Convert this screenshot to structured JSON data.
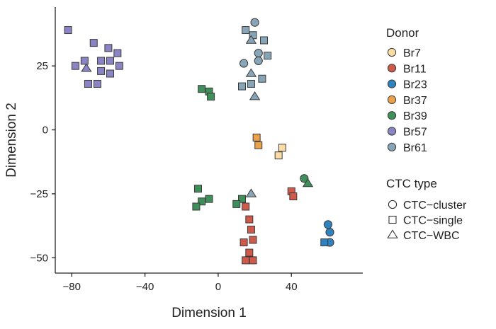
{
  "chart_data": {
    "type": "scatter",
    "title": "",
    "xlabel": "Dimension 1",
    "ylabel": "Dimension 2",
    "xlim": [
      -89,
      79
    ],
    "ylim": [
      -56,
      48
    ],
    "xticks": [
      -80,
      -40,
      0,
      40
    ],
    "yticks": [
      -50,
      -25,
      0,
      25
    ],
    "x_tick_labels": [
      "−80",
      "−40",
      "0",
      "40"
    ],
    "y_tick_labels": [
      "−50",
      "−25",
      "0",
      "25"
    ],
    "grid": false,
    "legend_placement": "right",
    "donor_legend": {
      "title": "Donor",
      "entries": [
        {
          "label": "Br7",
          "color": "#fbdca4"
        },
        {
          "label": "Br11",
          "color": "#cf5a4c"
        },
        {
          "label": "Br23",
          "color": "#2f82c0"
        },
        {
          "label": "Br37",
          "color": "#eba04a"
        },
        {
          "label": "Br39",
          "color": "#3f8f5b"
        },
        {
          "label": "Br57",
          "color": "#8b84c4"
        },
        {
          "label": "Br61",
          "color": "#87a5b7"
        }
      ]
    },
    "type_legend": {
      "title": "CTC type",
      "entries": [
        {
          "label": "CTC−cluster",
          "shape": "circle"
        },
        {
          "label": "CTC−single",
          "shape": "square"
        },
        {
          "label": "CTC−WBC",
          "shape": "triangle"
        }
      ]
    },
    "points": [
      {
        "x": -82,
        "y": 39,
        "donor": "Br57",
        "shape": "square"
      },
      {
        "x": -68,
        "y": 34,
        "donor": "Br57",
        "shape": "square"
      },
      {
        "x": -60,
        "y": 32,
        "donor": "Br57",
        "shape": "square"
      },
      {
        "x": -55,
        "y": 30,
        "donor": "Br57",
        "shape": "square"
      },
      {
        "x": -73,
        "y": 27,
        "donor": "Br57",
        "shape": "square"
      },
      {
        "x": -64,
        "y": 27,
        "donor": "Br57",
        "shape": "square"
      },
      {
        "x": -59,
        "y": 27,
        "donor": "Br57",
        "shape": "square"
      },
      {
        "x": -78,
        "y": 25,
        "donor": "Br57",
        "shape": "square"
      },
      {
        "x": -54,
        "y": 25,
        "donor": "Br57",
        "shape": "square"
      },
      {
        "x": -72,
        "y": 24,
        "donor": "Br57",
        "shape": "triangle"
      },
      {
        "x": -64,
        "y": 23,
        "donor": "Br57",
        "shape": "square"
      },
      {
        "x": -59,
        "y": 22,
        "donor": "Br57",
        "shape": "square"
      },
      {
        "x": -71,
        "y": 18,
        "donor": "Br57",
        "shape": "square"
      },
      {
        "x": -66,
        "y": 18,
        "donor": "Br57",
        "shape": "square"
      },
      {
        "x": 20,
        "y": 42,
        "donor": "Br61",
        "shape": "circle"
      },
      {
        "x": 15,
        "y": 39,
        "donor": "Br61",
        "shape": "square"
      },
      {
        "x": 19,
        "y": 37,
        "donor": "Br61",
        "shape": "square"
      },
      {
        "x": 18,
        "y": 35,
        "donor": "Br61",
        "shape": "triangle"
      },
      {
        "x": 25,
        "y": 35,
        "donor": "Br61",
        "shape": "square"
      },
      {
        "x": 22,
        "y": 30,
        "donor": "Br61",
        "shape": "circle"
      },
      {
        "x": 27,
        "y": 29,
        "donor": "Br61",
        "shape": "square"
      },
      {
        "x": 22,
        "y": 27,
        "donor": "Br61",
        "shape": "circle"
      },
      {
        "x": 14,
        "y": 26,
        "donor": "Br61",
        "shape": "circle"
      },
      {
        "x": 18,
        "y": 22,
        "donor": "Br61",
        "shape": "triangle"
      },
      {
        "x": 24,
        "y": 20,
        "donor": "Br61",
        "shape": "square"
      },
      {
        "x": 18,
        "y": 18,
        "donor": "Br61",
        "shape": "square"
      },
      {
        "x": 13,
        "y": 17,
        "donor": "Br61",
        "shape": "square"
      },
      {
        "x": 20,
        "y": 13,
        "donor": "Br61",
        "shape": "triangle"
      },
      {
        "x": 18,
        "y": -25,
        "donor": "Br61",
        "shape": "triangle"
      },
      {
        "x": -9,
        "y": 16,
        "donor": "Br39",
        "shape": "square"
      },
      {
        "x": -5,
        "y": 15,
        "donor": "Br39",
        "shape": "square"
      },
      {
        "x": -4,
        "y": 13,
        "donor": "Br39",
        "shape": "square"
      },
      {
        "x": 47,
        "y": -19,
        "donor": "Br39",
        "shape": "circle"
      },
      {
        "x": 49,
        "y": -21,
        "donor": "Br39",
        "shape": "triangle"
      },
      {
        "x": -11,
        "y": -23,
        "donor": "Br39",
        "shape": "square"
      },
      {
        "x": 13,
        "y": -27,
        "donor": "Br39",
        "shape": "square"
      },
      {
        "x": -5,
        "y": -27,
        "donor": "Br39",
        "shape": "square"
      },
      {
        "x": -9,
        "y": -28,
        "donor": "Br39",
        "shape": "square"
      },
      {
        "x": -12,
        "y": -30,
        "donor": "Br39",
        "shape": "square"
      },
      {
        "x": 10,
        "y": -29,
        "donor": "Br39",
        "shape": "square"
      },
      {
        "x": 21,
        "y": -3,
        "donor": "Br37",
        "shape": "square"
      },
      {
        "x": 22,
        "y": -6,
        "donor": "Br37",
        "shape": "square"
      },
      {
        "x": 35,
        "y": -7,
        "donor": "Br7",
        "shape": "square"
      },
      {
        "x": 33,
        "y": -10,
        "donor": "Br7",
        "shape": "square"
      },
      {
        "x": 40,
        "y": -24,
        "donor": "Br11",
        "shape": "square"
      },
      {
        "x": 41,
        "y": -26,
        "donor": "Br11",
        "shape": "square"
      },
      {
        "x": 15,
        "y": -30,
        "donor": "Br11",
        "shape": "square"
      },
      {
        "x": 17,
        "y": -35,
        "donor": "Br11",
        "shape": "square"
      },
      {
        "x": 18,
        "y": -39,
        "donor": "Br11",
        "shape": "square"
      },
      {
        "x": 19,
        "y": -43,
        "donor": "Br11",
        "shape": "square"
      },
      {
        "x": 14,
        "y": -44,
        "donor": "Br11",
        "shape": "square"
      },
      {
        "x": 17,
        "y": -48,
        "donor": "Br11",
        "shape": "square"
      },
      {
        "x": 19,
        "y": -51,
        "donor": "Br11",
        "shape": "square"
      },
      {
        "x": 15,
        "y": -51,
        "donor": "Br11",
        "shape": "square"
      },
      {
        "x": 60,
        "y": -37,
        "donor": "Br23",
        "shape": "circle"
      },
      {
        "x": 61,
        "y": -40,
        "donor": "Br23",
        "shape": "circle"
      },
      {
        "x": 61,
        "y": -44,
        "donor": "Br23",
        "shape": "circle"
      },
      {
        "x": 58,
        "y": -44,
        "donor": "Br23",
        "shape": "square"
      }
    ]
  }
}
